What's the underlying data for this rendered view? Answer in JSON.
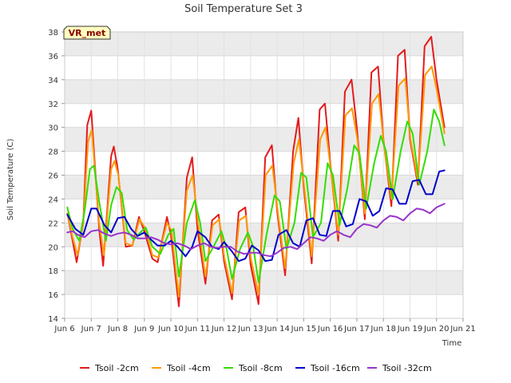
{
  "chart_data": {
    "type": "line",
    "title": "Soil Temperature Set 3",
    "xlabel": "Time",
    "ylabel": "Soil Temperature (C)",
    "badge": "VR_met",
    "xlim": [
      6,
      21
    ],
    "ylim": [
      14,
      38
    ],
    "x_ticks": [
      6,
      7,
      8,
      9,
      10,
      11,
      12,
      13,
      14,
      15,
      16,
      17,
      18,
      19,
      20,
      21
    ],
    "x_tick_labels": [
      "Jun 6",
      "Jun 7",
      "Jun 8",
      "Jun 9",
      "Jun 10",
      "Jun 11",
      "Jun 12",
      "Jun 13",
      "Jun 14",
      "Jun 15",
      "Jun 16",
      "Jun 17",
      "Jun 18",
      "Jun 19",
      "Jun 20",
      "Jun 21"
    ],
    "y_ticks": [
      14,
      16,
      18,
      20,
      22,
      24,
      26,
      28,
      30,
      32,
      34,
      36,
      38
    ],
    "y_tick_labels": [
      "14",
      "16",
      "18",
      "20",
      "22",
      "24",
      "26",
      "28",
      "30",
      "32",
      "34",
      "36",
      "38"
    ],
    "grid": true,
    "legend_position": "bottom",
    "series": [
      {
        "name": "Tsoil -2cm",
        "color": "#e41a1c",
        "x": [
          6.1,
          6.3,
          6.45,
          6.7,
          6.85,
          7.0,
          7.3,
          7.45,
          7.75,
          7.85,
          8.0,
          8.3,
          8.55,
          8.8,
          9.0,
          9.3,
          9.5,
          9.85,
          10.0,
          10.3,
          10.6,
          10.8,
          11.0,
          11.3,
          11.55,
          11.8,
          12.0,
          12.3,
          12.55,
          12.8,
          13.0,
          13.3,
          13.55,
          13.8,
          14.0,
          14.3,
          14.6,
          14.8,
          15.0,
          15.3,
          15.6,
          15.8,
          16.0,
          16.3,
          16.55,
          16.8,
          17.0,
          17.3,
          17.55,
          17.8,
          18.0,
          18.3,
          18.55,
          18.8,
          19.0,
          19.3,
          19.55,
          19.8,
          20.0,
          20.3
        ],
        "y": [
          22.8,
          20.5,
          18.7,
          22.0,
          30.2,
          31.4,
          21.5,
          18.4,
          27.6,
          28.4,
          26.5,
          20.0,
          20.1,
          22.5,
          21.3,
          19.0,
          18.7,
          22.5,
          21.0,
          15.0,
          25.8,
          27.5,
          21.5,
          16.9,
          22.2,
          22.7,
          18.8,
          15.6,
          22.9,
          23.3,
          18.5,
          15.2,
          27.5,
          28.5,
          23.0,
          17.6,
          28.0,
          30.8,
          25.0,
          18.6,
          31.5,
          32.0,
          27.0,
          20.5,
          33.0,
          34.0,
          30.0,
          22.3,
          34.6,
          35.1,
          29.0,
          23.4,
          36.0,
          36.5,
          29.0,
          25.2,
          36.8,
          37.6,
          34.0,
          30.0
        ]
      },
      {
        "name": "Tsoil -4cm",
        "color": "#ff9900",
        "x": [
          6.1,
          6.3,
          6.48,
          6.7,
          6.88,
          7.02,
          7.3,
          7.48,
          7.75,
          7.88,
          8.02,
          8.3,
          8.55,
          8.82,
          9.02,
          9.3,
          9.52,
          9.85,
          10.02,
          10.3,
          10.6,
          10.82,
          11.02,
          11.3,
          11.57,
          11.82,
          12.02,
          12.3,
          12.57,
          12.82,
          13.02,
          13.3,
          13.57,
          13.82,
          14.02,
          14.3,
          14.62,
          14.82,
          15.02,
          15.3,
          15.62,
          15.82,
          16.02,
          16.3,
          16.57,
          16.82,
          17.02,
          17.3,
          17.57,
          17.82,
          18.02,
          18.3,
          18.57,
          18.82,
          19.02,
          19.3,
          19.57,
          19.82,
          20.02,
          20.3
        ],
        "y": [
          22.8,
          20.8,
          19.3,
          22.0,
          28.8,
          29.8,
          22.0,
          19.3,
          26.5,
          27.2,
          26.0,
          20.3,
          20.1,
          22.3,
          21.6,
          19.3,
          19.1,
          22.0,
          21.4,
          15.8,
          24.7,
          26.0,
          22.0,
          17.5,
          21.8,
          22.3,
          19.0,
          16.1,
          22.2,
          22.6,
          18.9,
          16.0,
          26.0,
          26.8,
          23.0,
          18.2,
          27.0,
          29.0,
          25.0,
          19.2,
          29.0,
          30.0,
          26.5,
          21.0,
          31.0,
          31.6,
          29.0,
          22.8,
          32.0,
          32.8,
          28.5,
          24.0,
          33.5,
          34.1,
          29.0,
          25.5,
          34.4,
          35.1,
          33.0,
          29.5
        ]
      },
      {
        "name": "Tsoil -8cm",
        "color": "#33dd00",
        "x": [
          6.1,
          6.3,
          6.55,
          6.75,
          6.95,
          7.1,
          7.3,
          7.55,
          7.75,
          7.95,
          8.15,
          8.35,
          8.6,
          8.85,
          9.05,
          9.3,
          9.6,
          9.9,
          10.1,
          10.3,
          10.6,
          10.9,
          11.1,
          11.3,
          11.6,
          11.9,
          12.1,
          12.3,
          12.6,
          12.9,
          13.1,
          13.3,
          13.6,
          13.9,
          14.1,
          14.35,
          14.65,
          14.9,
          15.1,
          15.35,
          15.65,
          15.9,
          16.1,
          16.35,
          16.65,
          16.9,
          17.1,
          17.35,
          17.65,
          17.9,
          18.1,
          18.35,
          18.65,
          18.9,
          19.1,
          19.35,
          19.65,
          19.9,
          20.1,
          20.3
        ],
        "y": [
          23.3,
          21.5,
          20.5,
          23.0,
          26.5,
          26.8,
          23.8,
          20.5,
          23.5,
          25.0,
          24.5,
          21.4,
          20.6,
          21.2,
          21.6,
          20.0,
          19.4,
          21.0,
          21.5,
          17.5,
          22.0,
          23.9,
          22.0,
          18.8,
          20.0,
          21.3,
          19.8,
          17.3,
          19.8,
          21.2,
          20.0,
          17.0,
          21.0,
          24.3,
          23.8,
          19.8,
          22.0,
          26.2,
          25.8,
          20.8,
          22.0,
          27.0,
          26.0,
          21.8,
          25.0,
          28.5,
          27.8,
          23.2,
          27.0,
          29.3,
          28.0,
          24.0,
          28.0,
          30.5,
          29.5,
          25.2,
          28.0,
          31.5,
          30.5,
          28.5
        ]
      },
      {
        "name": "Tsoil -16cm",
        "color": "#0000cc",
        "x": [
          6.1,
          6.4,
          6.7,
          7.0,
          7.2,
          7.5,
          7.75,
          8.0,
          8.25,
          8.5,
          8.75,
          9.0,
          9.25,
          9.5,
          9.75,
          10.0,
          10.25,
          10.55,
          10.8,
          11.0,
          11.3,
          11.55,
          11.8,
          12.0,
          12.3,
          12.55,
          12.8,
          13.05,
          13.3,
          13.55,
          13.8,
          14.05,
          14.35,
          14.6,
          14.85,
          15.1,
          15.35,
          15.6,
          15.85,
          16.1,
          16.35,
          16.6,
          16.85,
          17.1,
          17.35,
          17.6,
          17.85,
          18.1,
          18.35,
          18.6,
          18.85,
          19.1,
          19.35,
          19.6,
          19.85,
          20.1,
          20.3
        ],
        "y": [
          22.7,
          21.5,
          21.0,
          23.2,
          23.2,
          21.8,
          21.2,
          22.4,
          22.5,
          21.5,
          20.9,
          21.2,
          20.6,
          20.1,
          20.1,
          20.5,
          20.0,
          19.2,
          20.0,
          21.3,
          20.8,
          20.0,
          19.8,
          20.4,
          19.6,
          18.8,
          19.0,
          20.1,
          19.7,
          18.8,
          18.9,
          21.0,
          21.4,
          20.3,
          20.0,
          22.2,
          22.4,
          21.0,
          20.9,
          23.0,
          23.0,
          21.7,
          21.9,
          24.0,
          23.8,
          22.6,
          23.0,
          24.9,
          24.8,
          23.6,
          23.6,
          25.5,
          25.6,
          24.4,
          24.4,
          26.3,
          26.4
        ]
      },
      {
        "name": "Tsoil -32cm",
        "color": "#9933cc",
        "x": [
          6.1,
          6.3,
          6.5,
          6.75,
          7.0,
          7.25,
          7.5,
          7.75,
          8.0,
          8.25,
          8.5,
          8.75,
          9.0,
          9.25,
          9.5,
          9.75,
          10.0,
          10.25,
          10.5,
          10.75,
          11.0,
          11.25,
          11.5,
          11.75,
          12.0,
          12.25,
          12.5,
          12.75,
          13.0,
          13.25,
          13.5,
          13.75,
          14.0,
          14.25,
          14.5,
          14.75,
          15.0,
          15.25,
          15.5,
          15.75,
          16.0,
          16.25,
          16.5,
          16.75,
          17.0,
          17.25,
          17.5,
          17.75,
          18.0,
          18.25,
          18.5,
          18.75,
          19.0,
          19.25,
          19.5,
          19.75,
          20.0,
          20.3
        ],
        "y": [
          21.2,
          21.3,
          21.0,
          20.8,
          21.3,
          21.4,
          21.1,
          20.9,
          21.1,
          21.2,
          21.0,
          20.7,
          20.7,
          20.8,
          20.6,
          20.3,
          20.2,
          20.3,
          20.1,
          19.8,
          20.1,
          20.3,
          20.0,
          19.9,
          20.0,
          20.0,
          19.6,
          19.4,
          19.5,
          19.5,
          19.3,
          19.2,
          19.5,
          19.9,
          20.0,
          19.8,
          20.3,
          20.8,
          20.7,
          20.5,
          21.0,
          21.3,
          21.0,
          20.8,
          21.5,
          21.9,
          21.8,
          21.6,
          22.2,
          22.6,
          22.5,
          22.2,
          22.8,
          23.2,
          23.1,
          22.8,
          23.3,
          23.6
        ]
      }
    ]
  }
}
